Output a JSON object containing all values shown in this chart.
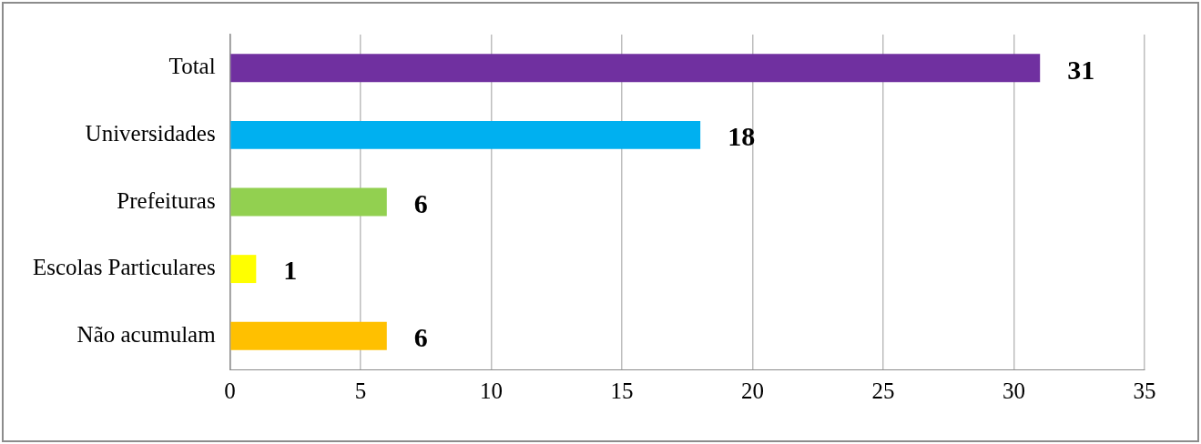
{
  "chart_data": {
    "type": "bar",
    "orientation": "horizontal",
    "categories": [
      "Total",
      "Universidades",
      "Prefeituras",
      "Escolas Particulares",
      "Não acumulam"
    ],
    "values": [
      31,
      18,
      6,
      1,
      6
    ],
    "colors": [
      "#7030a0",
      "#00b0f0",
      "#92d050",
      "#ffff00",
      "#ffc000"
    ],
    "xlim": [
      0,
      35
    ],
    "xticks": [
      0,
      5,
      10,
      15,
      20,
      25,
      30,
      35
    ],
    "grid": "x",
    "legend": false,
    "data_labels": true
  }
}
